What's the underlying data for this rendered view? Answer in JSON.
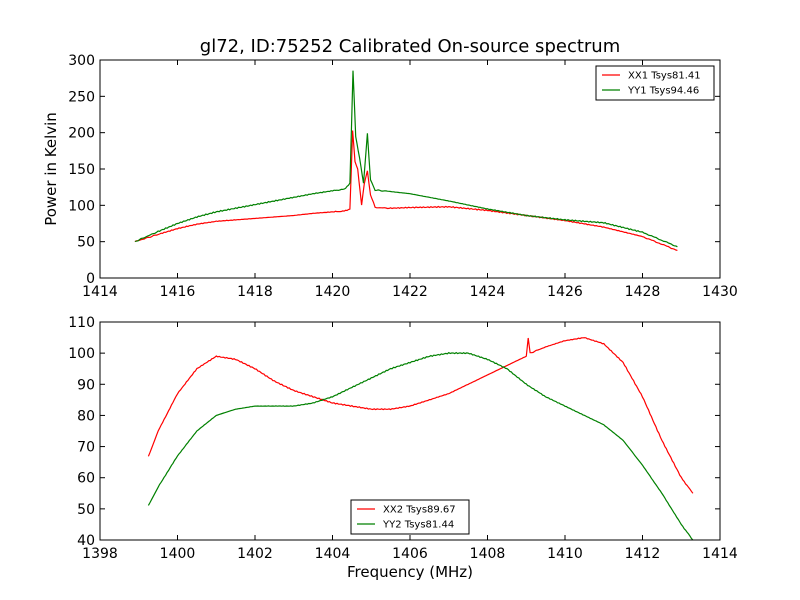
{
  "colors": {
    "xx": "#ff0000",
    "yy": "#008000"
  },
  "chart_data": [
    {
      "type": "line",
      "title": "gl72, ID:75252 Calibrated On-source spectrum",
      "xlabel": "",
      "ylabel": "Power in Kelvin",
      "xlim": [
        1414,
        1430
      ],
      "ylim": [
        0,
        300
      ],
      "xticks": [
        1414,
        1416,
        1418,
        1420,
        1422,
        1424,
        1426,
        1428,
        1430
      ],
      "yticks": [
        0,
        50,
        100,
        150,
        200,
        250,
        300
      ],
      "legend": "top-right",
      "series": [
        {
          "name": "XX1 Tsys81.41",
          "color": "#ff0000",
          "x": [
            1414.9,
            1415.5,
            1416.0,
            1416.5,
            1417.0,
            1418.0,
            1419.0,
            1419.5,
            1420.0,
            1420.3,
            1420.45,
            1420.52,
            1420.58,
            1420.65,
            1420.75,
            1420.82,
            1420.9,
            1420.98,
            1421.1,
            1421.5,
            1422.0,
            1423.0,
            1424.0,
            1425.0,
            1426.0,
            1427.0,
            1428.0,
            1428.9
          ],
          "y": [
            50,
            60,
            68,
            74,
            78,
            82,
            86,
            89,
            91,
            92,
            95,
            203,
            160,
            150,
            100,
            130,
            147,
            115,
            97,
            96,
            97,
            98,
            93,
            86,
            79,
            70,
            57,
            38
          ]
        },
        {
          "name": "YY1 Tsys94.46",
          "color": "#008000",
          "x": [
            1414.9,
            1415.5,
            1416.0,
            1416.5,
            1417.0,
            1418.0,
            1419.0,
            1419.5,
            1420.0,
            1420.3,
            1420.45,
            1420.53,
            1420.6,
            1420.7,
            1420.8,
            1420.9,
            1420.98,
            1421.1,
            1421.5,
            1422.0,
            1423.0,
            1424.0,
            1425.0,
            1426.0,
            1427.0,
            1428.0,
            1428.9
          ],
          "y": [
            50,
            64,
            75,
            84,
            91,
            101,
            111,
            116,
            120,
            122,
            130,
            286,
            195,
            165,
            130,
            199,
            135,
            121,
            119,
            116,
            106,
            95,
            86,
            80,
            76,
            63,
            43
          ]
        }
      ]
    },
    {
      "type": "line",
      "title": "",
      "xlabel": "Frequency (MHz)",
      "ylabel": "",
      "xlim": [
        1398,
        1414
      ],
      "ylim": [
        40,
        110
      ],
      "xticks": [
        1398,
        1400,
        1402,
        1404,
        1406,
        1408,
        1410,
        1412,
        1414
      ],
      "yticks": [
        40,
        50,
        60,
        70,
        80,
        90,
        100,
        110
      ],
      "legend": "bottom-center",
      "series": [
        {
          "name": "XX2 Tsys89.67",
          "color": "#ff0000",
          "x": [
            1399.25,
            1399.5,
            1400.0,
            1400.5,
            1401.0,
            1401.5,
            1402.0,
            1402.5,
            1403.0,
            1403.5,
            1404.0,
            1404.5,
            1405.0,
            1405.5,
            1406.0,
            1406.5,
            1407.0,
            1407.5,
            1408.0,
            1408.5,
            1409.0,
            1409.05,
            1409.1,
            1409.5,
            1410.0,
            1410.5,
            1411.0,
            1411.5,
            1412.0,
            1412.5,
            1413.0,
            1413.3
          ],
          "y": [
            67,
            75,
            87,
            95,
            99,
            98,
            95,
            91,
            88,
            86,
            84,
            83,
            82,
            82,
            83,
            85,
            87,
            90,
            93,
            96,
            99,
            105,
            100,
            102,
            104,
            105,
            103,
            97,
            86,
            72,
            60,
            55
          ]
        },
        {
          "name": "YY2 Tsys81.44",
          "color": "#008000",
          "x": [
            1399.25,
            1399.5,
            1400.0,
            1400.5,
            1401.0,
            1401.5,
            1402.0,
            1402.5,
            1403.0,
            1403.5,
            1404.0,
            1404.5,
            1405.0,
            1405.5,
            1406.0,
            1406.5,
            1407.0,
            1407.5,
            1408.0,
            1408.5,
            1409.0,
            1409.5,
            1410.0,
            1410.5,
            1411.0,
            1411.5,
            1412.0,
            1412.5,
            1413.0,
            1413.3
          ],
          "y": [
            51,
            57,
            67,
            75,
            80,
            82,
            83,
            83,
            83,
            84,
            86,
            89,
            92,
            95,
            97,
            99,
            100,
            100,
            98,
            95,
            90,
            86,
            83,
            80,
            77,
            72,
            64,
            55,
            45,
            40
          ]
        }
      ]
    }
  ]
}
